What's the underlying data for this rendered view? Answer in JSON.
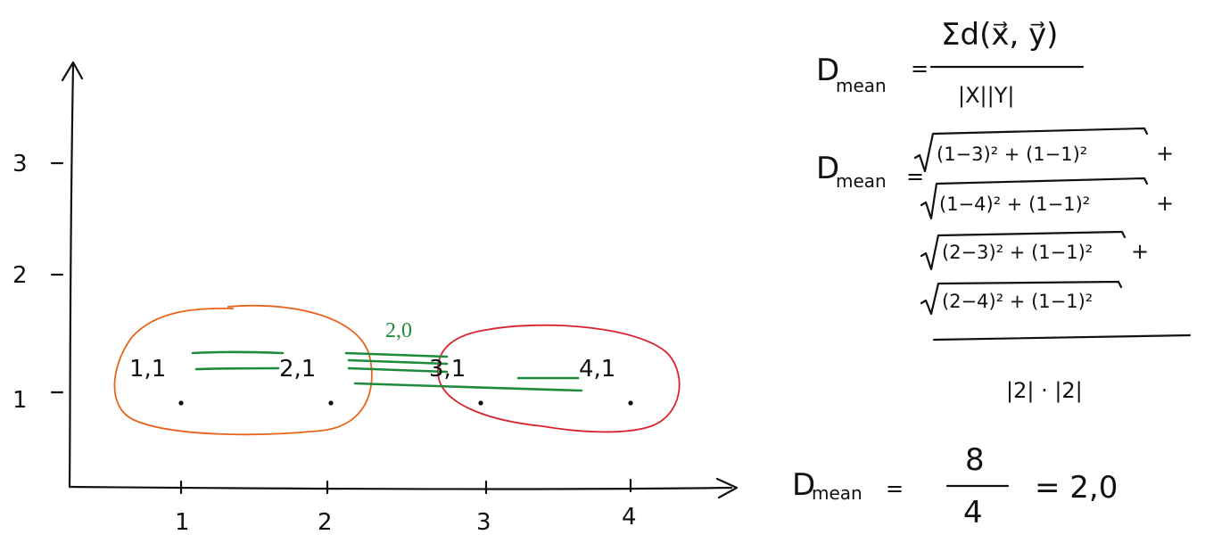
{
  "axes": {
    "x_ticks": [
      "1",
      "2",
      "3",
      "4"
    ],
    "y_ticks": [
      "1",
      "2",
      "3"
    ]
  },
  "points": [
    {
      "label": "1,1",
      "x": 1,
      "y": 1,
      "cluster": "orange"
    },
    {
      "label": "2,1",
      "x": 2,
      "y": 1,
      "cluster": "orange"
    },
    {
      "label": "3,1",
      "x": 3,
      "y": 1,
      "cluster": "red"
    },
    {
      "label": "4,1",
      "x": 4,
      "y": 1,
      "cluster": "red"
    }
  ],
  "link_label": "2,0",
  "colors": {
    "cluster_a": "#e8641c",
    "cluster_b": "#d9232e",
    "links": "#1f8a3b",
    "ink": "#111111"
  },
  "formula": {
    "lhs": "D",
    "lhs_sub": "mean",
    "equals": "=",
    "def_numerator": "Σd(x⃗, y⃗)",
    "def_denominator": "|X||Y|",
    "terms": [
      "(1−3)² + (1−1)²",
      "(1−4)² + (1−1)²",
      "(2−3)² + (1−1)²",
      "(2−4)² + (1−1)²"
    ],
    "plus": "+",
    "sum_denominator": "|2| · |2|",
    "result_numerator": "8",
    "result_denominator": "4",
    "result": "= 2,0"
  }
}
